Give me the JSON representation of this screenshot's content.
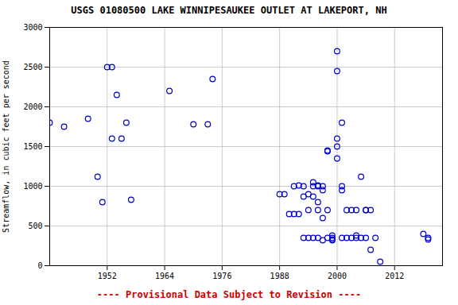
{
  "chart_data": {
    "type": "scatter",
    "title": "USGS 01080500 LAKE WINNIPESAUKEE OUTLET AT LAKEPORT, NH",
    "ylabel": "Streamflow, in cubic feet per second",
    "annotations": [
      {
        "text": "---- Provisional Data Subject to Revision ----",
        "color": "#cc0000"
      }
    ],
    "xlim": [
      1940,
      2022
    ],
    "ylim": [
      0,
      3000
    ],
    "xticks": [
      1952,
      1964,
      1976,
      1988,
      2000,
      2012
    ],
    "yticks": [
      0,
      500,
      1000,
      1500,
      2000,
      2500,
      3000
    ],
    "grid": true,
    "color": "#0000CC",
    "marker": "circle",
    "x": [
      1940,
      1943,
      1948,
      1950,
      1951,
      1952,
      1953,
      1953,
      1954,
      1955,
      1956,
      1957,
      1965,
      1970,
      1973,
      1974,
      1988,
      1989,
      1990,
      1991,
      1991,
      1992,
      1992,
      1993,
      1993,
      1993,
      1994,
      1994,
      1994,
      1995,
      1995,
      1995,
      1995,
      1996,
      1996,
      1996,
      1996,
      1996,
      1997,
      1997,
      1997,
      1997,
      1998,
      1998,
      1998,
      1998,
      1999,
      1999,
      1999,
      1999,
      2000,
      2000,
      2000,
      2000,
      2000,
      2001,
      2001,
      2001,
      2001,
      2002,
      2002,
      2003,
      2003,
      2004,
      2004,
      2004,
      2005,
      2005,
      2006,
      2006,
      2006,
      2007,
      2007,
      2008,
      2009,
      2018,
      2019,
      2019
    ],
    "values": [
      1800,
      1750,
      1850,
      1120,
      800,
      2500,
      2500,
      1600,
      2150,
      1600,
      1800,
      830,
      2200,
      1780,
      1780,
      2350,
      900,
      900,
      650,
      1000,
      650,
      1010,
      650,
      1000,
      870,
      350,
      900,
      700,
      350,
      1000,
      1050,
      870,
      350,
      1000,
      1010,
      800,
      700,
      350,
      1000,
      950,
      600,
      320,
      1440,
      1450,
      700,
      350,
      350,
      330,
      320,
      380,
      2700,
      2450,
      1600,
      1500,
      1350,
      1800,
      1000,
      950,
      350,
      700,
      350,
      700,
      350,
      700,
      380,
      350,
      1120,
      350,
      700,
      700,
      350,
      700,
      200,
      350,
      50,
      400,
      350,
      330
    ]
  }
}
